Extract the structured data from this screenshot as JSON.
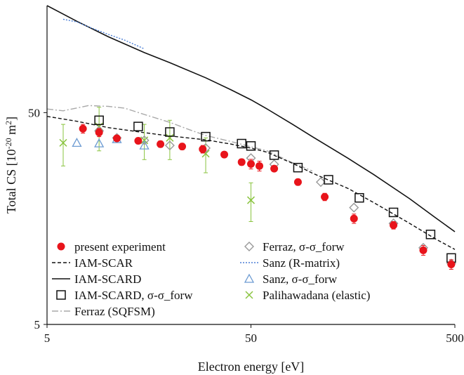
{
  "chart_data": {
    "type": "scatter",
    "xlabel": "Electron energy [eV]",
    "ylabel_main": "Total CS [10",
    "ylabel_exp": "-20",
    "ylabel_tail": " m",
    "ylabel_exp2": "2",
    "ylabel_close": "]",
    "x_scale": "log",
    "y_scale": "log",
    "xlim": [
      5,
      500
    ],
    "ylim": [
      5,
      160
    ],
    "x_ticks": [
      {
        "value": 5,
        "label": "5"
      },
      {
        "value": 50,
        "label": "50"
      },
      {
        "value": 500,
        "label": "500"
      }
    ],
    "y_ticks": [
      {
        "value": 5,
        "label": "5"
      },
      {
        "value": 50,
        "label": "50"
      }
    ],
    "grid": false,
    "legend_position": "bottom-left",
    "series": [
      {
        "name": "present experiment",
        "style": "dot",
        "color": "#e8141b",
        "points": [
          [
            7.5,
            42.0
          ],
          [
            9,
            40.3
          ],
          [
            11,
            37.8
          ],
          [
            14,
            36.8
          ],
          [
            18,
            35.5
          ],
          [
            23,
            34.6
          ],
          [
            29,
            33.6
          ],
          [
            37,
            31.7
          ],
          [
            45,
            29.2
          ],
          [
            50,
            28.6
          ],
          [
            55,
            28.0
          ],
          [
            65,
            27.2
          ],
          [
            85,
            23.5
          ],
          [
            115,
            20.0
          ],
          [
            160,
            15.8
          ],
          [
            250,
            14.7
          ],
          [
            350,
            11.2
          ],
          [
            480,
            9.6
          ]
        ],
        "errors": [
          2.0,
          1.8,
          1.2,
          1.2,
          1.2,
          1.2,
          1.4,
          1.0,
          1.0,
          1.5,
          1.5,
          0.8,
          0.8,
          0.8,
          0.8,
          0.6,
          0.6,
          0.5
        ]
      },
      {
        "name": "IAM-SCAR",
        "style": "dashed",
        "color": "#111111",
        "points": [
          [
            5,
            48.0
          ],
          [
            7,
            45.5
          ],
          [
            10,
            42.5
          ],
          [
            15,
            40.2
          ],
          [
            20,
            38.8
          ],
          [
            30,
            37.2
          ],
          [
            40,
            35.5
          ],
          [
            50,
            34.0
          ],
          [
            60,
            32.5
          ],
          [
            80,
            28.8
          ],
          [
            100,
            25.9
          ],
          [
            150,
            21.9
          ],
          [
            200,
            18.8
          ],
          [
            300,
            15.0
          ],
          [
            400,
            12.7
          ],
          [
            500,
            11.3
          ]
        ]
      },
      {
        "name": "IAM-SCARD",
        "style": "solid",
        "color": "#111111",
        "points": [
          [
            5,
            160
          ],
          [
            7,
            135
          ],
          [
            10,
            114
          ],
          [
            15,
            96
          ],
          [
            20,
            86
          ],
          [
            30,
            73
          ],
          [
            40,
            64
          ],
          [
            50,
            57.5
          ],
          [
            60,
            52
          ],
          [
            80,
            44
          ],
          [
            100,
            38.5
          ],
          [
            150,
            30.4
          ],
          [
            200,
            25.5
          ],
          [
            300,
            19.6
          ],
          [
            400,
            16.0
          ],
          [
            500,
            13.7
          ]
        ]
      },
      {
        "name": "IAM-SCARD, σ-σ_forw",
        "style": "open-square",
        "color": "#111111",
        "points": [
          [
            9,
            46
          ],
          [
            14,
            43
          ],
          [
            20,
            40.5
          ],
          [
            30,
            38.5
          ],
          [
            45,
            35.7
          ],
          [
            50,
            34.8
          ],
          [
            65,
            31.5
          ],
          [
            85,
            27.5
          ],
          [
            120,
            24.1
          ],
          [
            170,
            19.8
          ],
          [
            250,
            16.9
          ],
          [
            380,
            13.3
          ],
          [
            480,
            10.3
          ]
        ]
      },
      {
        "name": "Ferraz (SQFSM)",
        "style": "dashdot",
        "color": "#a8a8a8",
        "points": [
          [
            5,
            52
          ],
          [
            6,
            51
          ],
          [
            8,
            54
          ],
          [
            10,
            53.5
          ],
          [
            12,
            52.5
          ],
          [
            15,
            49
          ],
          [
            20,
            45
          ],
          [
            25,
            41.5
          ],
          [
            30,
            39
          ],
          [
            40,
            36.5
          ],
          [
            50,
            34.5
          ],
          [
            60,
            33
          ],
          [
            80,
            29
          ],
          [
            100,
            26.5
          ]
        ]
      },
      {
        "name": "Ferraz, σ-σ_forw",
        "style": "open-diamond",
        "color": "#999999",
        "points": [
          [
            9,
            41
          ],
          [
            11,
            38
          ],
          [
            15,
            37
          ],
          [
            20,
            35
          ],
          [
            30,
            34
          ],
          [
            50,
            30.5
          ],
          [
            65,
            28.5
          ],
          [
            110,
            23.5
          ],
          [
            160,
            17.8
          ],
          [
            250,
            15
          ],
          [
            350,
            11.5
          ],
          [
            480,
            9.7
          ]
        ]
      },
      {
        "name": "Sanz (R-matrix)",
        "style": "dotted",
        "color": "#4c7fd6",
        "points": [
          [
            6,
            138
          ],
          [
            7,
            134
          ],
          [
            8,
            127
          ],
          [
            10,
            117
          ],
          [
            12,
            110
          ],
          [
            14,
            103
          ],
          [
            15,
            100
          ]
        ]
      },
      {
        "name": "Sanz, σ-σ_forw",
        "style": "open-triangle",
        "color": "#6c9bd2",
        "points": [
          [
            7,
            36
          ],
          [
            9,
            35.8
          ],
          [
            11,
            37.5
          ],
          [
            15,
            35
          ]
        ]
      },
      {
        "name": "Palihawadana (elastic)",
        "style": "cross",
        "color": "#8ac43f",
        "points": [
          [
            6,
            36
          ],
          [
            9,
            43
          ],
          [
            15,
            37
          ],
          [
            20,
            38
          ],
          [
            30,
            32
          ],
          [
            50,
            19.3
          ]
        ],
        "errors": [
          8,
          10,
          7,
          8,
          6,
          4
        ]
      }
    ]
  }
}
